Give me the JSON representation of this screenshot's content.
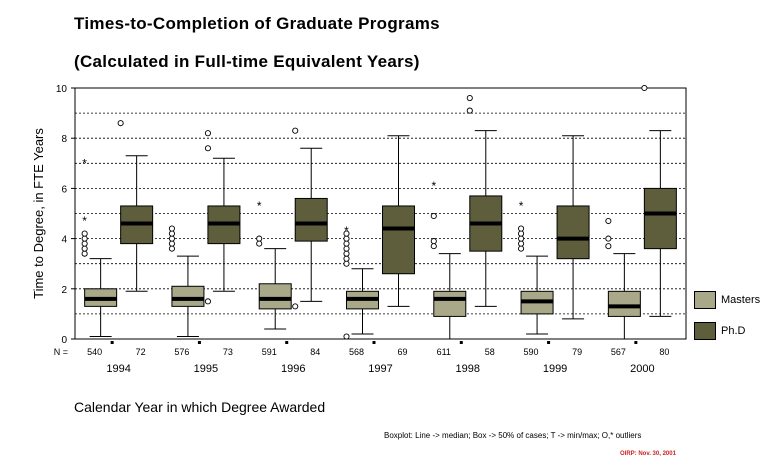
{
  "chart_data": {
    "type": "boxplot",
    "title": "Times-to-Completion of Graduate Programs",
    "subtitle": "(Calculated in Full-time Equivalent Years)",
    "xlabel": "Calendar Year in which Degree Awarded",
    "ylabel": "Time to Degree, in FTE Years",
    "ylim": [
      0,
      10
    ],
    "yticks": [
      "0",
      "2",
      "4",
      "6",
      "8",
      "10"
    ],
    "grid": "horizontal dashed at every 1 unit",
    "legend_position": "right",
    "n_label": "N =",
    "footnote": "Boxplot: Line -> median; Box -> 50% of cases; T -> min/max; O,* outliers",
    "credit": "OIRP: Nov. 30, 2001",
    "categories": [
      "1994",
      "1995",
      "1996",
      "1997",
      "1998",
      "1999",
      "2000"
    ],
    "series": [
      {
        "name": "Masters",
        "color": "#a9a98a",
        "counts": [
          "540",
          "576",
          "591",
          "568",
          "611",
          "590",
          "567"
        ],
        "boxes": [
          {
            "min": 0.1,
            "q1": 1.3,
            "median": 1.6,
            "q3": 2.0,
            "max": 3.2,
            "outliers_o": [
              3.4,
              3.6,
              3.8,
              4.0,
              4.2
            ],
            "outliers_star": [
              4.7,
              7.0
            ]
          },
          {
            "min": 0.1,
            "q1": 1.3,
            "median": 1.6,
            "q3": 2.1,
            "max": 3.3,
            "outliers_o": [
              3.6,
              3.8,
              4.0,
              4.2,
              4.4
            ],
            "outliers_star": []
          },
          {
            "min": 0.4,
            "q1": 1.2,
            "median": 1.6,
            "q3": 2.2,
            "max": 3.6,
            "outliers_o": [
              3.8,
              4.0
            ],
            "outliers_star": [
              5.3
            ]
          },
          {
            "min": 0.2,
            "q1": 1.2,
            "median": 1.6,
            "q3": 1.9,
            "max": 2.8,
            "outliers_o": [
              0.1,
              3.0,
              3.2,
              3.4,
              3.6,
              3.8,
              4.0,
              4.2
            ],
            "outliers_star": [
              4.3
            ]
          },
          {
            "min": 0.0,
            "q1": 0.9,
            "median": 1.6,
            "q3": 1.9,
            "max": 3.4,
            "outliers_o": [
              3.7,
              3.9,
              4.9
            ],
            "outliers_star": [
              6.1
            ]
          },
          {
            "min": 0.2,
            "q1": 1.0,
            "median": 1.5,
            "q3": 1.9,
            "max": 3.3,
            "outliers_o": [
              3.6,
              3.8,
              4.0,
              4.2,
              4.4
            ],
            "outliers_star": [
              5.3
            ]
          },
          {
            "min": 0.0,
            "q1": 0.9,
            "median": 1.3,
            "q3": 1.9,
            "max": 3.4,
            "outliers_o": [
              3.7,
              4.0,
              4.7
            ],
            "outliers_star": []
          }
        ]
      },
      {
        "name": "Ph.D",
        "color": "#5e5e3d",
        "counts": [
          "72",
          "73",
          "84",
          "69",
          "58",
          "79",
          "80"
        ],
        "boxes": [
          {
            "min": 1.9,
            "q1": 3.8,
            "median": 4.6,
            "q3": 5.3,
            "max": 7.3,
            "outliers_o": [
              8.6
            ],
            "outliers_star": []
          },
          {
            "min": 1.9,
            "q1": 3.8,
            "median": 4.6,
            "q3": 5.3,
            "max": 7.2,
            "outliers_o": [
              1.5,
              7.6,
              8.2
            ],
            "outliers_star": []
          },
          {
            "min": 1.5,
            "q1": 3.9,
            "median": 4.6,
            "q3": 5.6,
            "max": 7.6,
            "outliers_o": [
              1.3,
              8.3
            ],
            "outliers_star": []
          },
          {
            "min": 1.3,
            "q1": 2.6,
            "median": 4.4,
            "q3": 5.3,
            "max": 8.1,
            "outliers_o": [],
            "outliers_star": []
          },
          {
            "min": 1.3,
            "q1": 3.5,
            "median": 4.6,
            "q3": 5.7,
            "max": 8.3,
            "outliers_o": [
              9.1,
              9.6
            ],
            "outliers_star": []
          },
          {
            "min": 0.8,
            "q1": 3.2,
            "median": 4.0,
            "q3": 5.3,
            "max": 8.1,
            "outliers_o": [],
            "outliers_star": []
          },
          {
            "min": 0.9,
            "q1": 3.6,
            "median": 5.0,
            "q3": 6.0,
            "max": 8.3,
            "outliers_o": [
              10.0
            ],
            "outliers_star": []
          }
        ]
      }
    ]
  }
}
